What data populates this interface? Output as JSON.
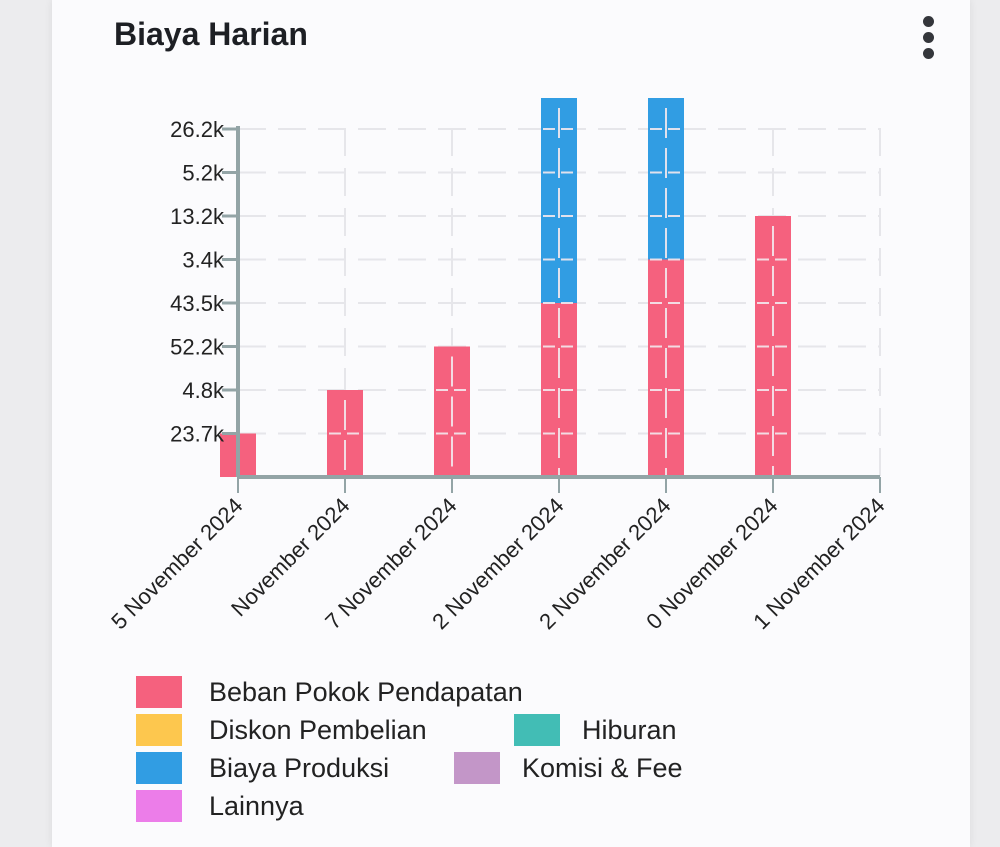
{
  "header": {
    "title": "Biaya Harian",
    "menu_icon": "more-vertical-icon"
  },
  "colors": {
    "beban": "#f5617e",
    "diskon": "#fdc74e",
    "hiburan": "#42bdb5",
    "produksi": "#319de3",
    "komisi": "#c396c8",
    "lainnya": "#ec7de9",
    "axis": "#93a4a6",
    "grid": "#e6e6ea"
  },
  "legend": [
    {
      "label": "Beban Pokok Pendapatan",
      "color": "#f5617e"
    },
    {
      "label": "Diskon Pembelian",
      "color": "#fdc74e"
    },
    {
      "label": "Hiburan",
      "color": "#42bdb5"
    },
    {
      "label": "Biaya Produksi",
      "color": "#319de3"
    },
    {
      "label": "Komisi & Fee",
      "color": "#c396c8"
    },
    {
      "label": "Lainnya",
      "color": "#ec7de9"
    }
  ],
  "chart_data": {
    "type": "bar",
    "stacked": true,
    "title": "Biaya Harian",
    "xlabel": "",
    "ylabel": "",
    "y_tick_labels_top_to_bottom": [
      "26.2k",
      "5.2k",
      "13.2k",
      "3.4k",
      "43.5k",
      "52.2k",
      "4.8k",
      "23.7k"
    ],
    "categories": [
      "… November 2024",
      "… November 2024",
      "… November 2024",
      "… November 2024",
      "… November 2024",
      "… November 2024",
      "… November 2024"
    ],
    "x_label_prefix_fragments": [
      "5",
      "",
      "7",
      "2",
      "2",
      "0",
      "1"
    ],
    "series": [
      {
        "name": "Beban Pokok Pendapatan",
        "values_in_tick_units": [
          1,
          2,
          3,
          4,
          5,
          6,
          0
        ]
      },
      {
        "name": "Diskon Pembelian",
        "values_in_tick_units": [
          0,
          0,
          0,
          0,
          0,
          0,
          0
        ]
      },
      {
        "name": "Hiburan",
        "values_in_tick_units": [
          0,
          0,
          0,
          0,
          0,
          0,
          0
        ]
      },
      {
        "name": "Biaya Produksi",
        "values_in_tick_units": [
          0,
          0,
          0,
          4.75,
          3.75,
          0,
          0
        ]
      },
      {
        "name": "Komisi & Fee",
        "values_in_tick_units": [
          0,
          0,
          0,
          0,
          0,
          0,
          0
        ]
      },
      {
        "name": "Lainnya",
        "values_in_tick_units": [
          0,
          0,
          0,
          0,
          0,
          0,
          0
        ]
      }
    ],
    "grid": true,
    "legend_position": "bottom"
  }
}
